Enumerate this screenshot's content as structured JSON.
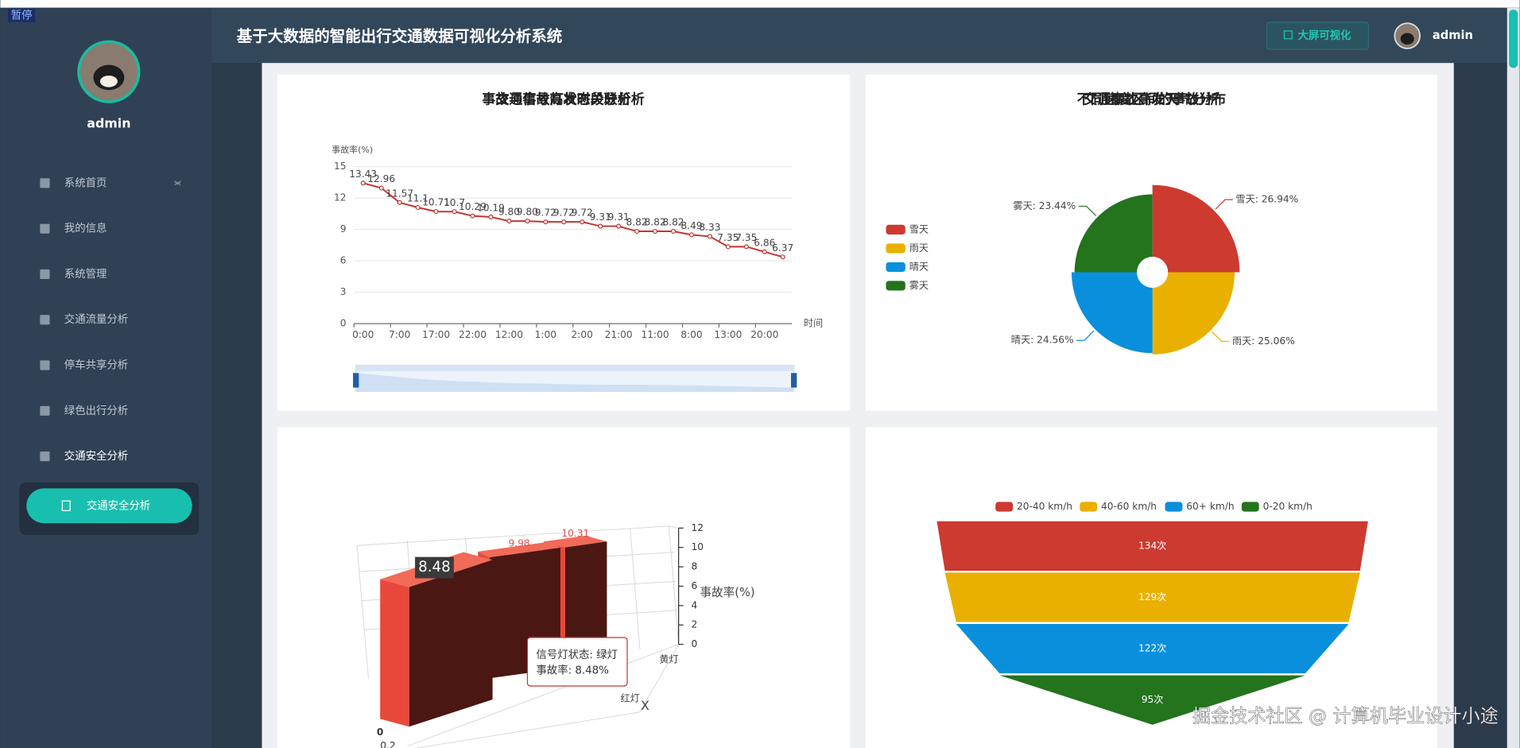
{
  "overlay": {
    "pause": "暂停",
    "watermark": "掘金技术社区 @ 计算机毕业设计小途"
  },
  "header": {
    "title": "基于大数据的智能出行交通数据可视化分析系统",
    "button": "大屏可视化",
    "user": "admin"
  },
  "sidebar": {
    "user": "admin",
    "menu": [
      "系统首页",
      "我的信息",
      "系统管理",
      "交通流量分析",
      "停车共享分析",
      "绿色出行分析",
      "交通安全分析"
    ],
    "submenu": [
      "交通安全分析"
    ]
  },
  "chart_data": [
    {
      "type": "line",
      "title": "交通事故高发时段分析",
      "y_label": "事故率(%)",
      "x_label": "时间",
      "categories": [
        "0:00",
        null,
        "7:00",
        null,
        "17:00",
        null,
        "22:00",
        null,
        "12:00",
        null,
        "1:00",
        null,
        "2:00",
        null,
        "21:00",
        null,
        "11:00",
        null,
        "8:00",
        null,
        "13:00",
        null,
        "20:00",
        null
      ],
      "values": [
        13.43,
        12.96,
        11.57,
        11.1,
        10.71,
        10.7,
        10.29,
        10.19,
        9.8,
        9.8,
        9.72,
        9.72,
        9.72,
        9.31,
        9.31,
        8.82,
        8.82,
        8.82,
        8.49,
        8.33,
        7.35,
        7.35,
        6.86,
        6.37
      ],
      "value_labels": [
        "13.43",
        "12.96",
        "11.57",
        "11.1",
        "10.71",
        "10.7",
        "10.29",
        "10.19",
        "9.80",
        "9.80",
        "9.72",
        "9.72",
        "9.72",
        "9.31",
        "9.31",
        "8.82",
        "8.82",
        "8.82",
        "8.49",
        "8.33",
        "7.35",
        "7.35",
        "6.86",
        "6.37"
      ],
      "color": "#c23531",
      "ylim": [
        0,
        15
      ],
      "yticks": [
        0,
        3,
        6,
        9,
        12,
        15
      ],
      "grid": true
    },
    {
      "type": "pie",
      "title": "交通事故高发天气分析",
      "rose": "area",
      "legend": "left",
      "categories": [
        "雪天",
        "雨天",
        "晴天",
        "雾天"
      ],
      "values": [
        26.94,
        25.06,
        24.56,
        23.44
      ],
      "value_labels": [
        "雪天: 26.94%",
        "雨天: 25.06%",
        "晴天: 24.56%",
        "雾天: 23.44%"
      ],
      "colors": [
        "#cc3a30",
        "#e9b000",
        "#0a8fdc",
        "#23741d"
      ]
    },
    {
      "type": "bar3d",
      "title": "事故与信号灯状态关联分析",
      "x_label": "X",
      "z_label": "事故率(%)",
      "categories": [
        null,
        "黄灯",
        "红灯"
      ],
      "values": [
        8.48,
        9.98,
        10.31
      ],
      "color": "#e8493a",
      "zlim": [
        0,
        12
      ],
      "zticks": [
        0,
        2,
        4,
        6,
        8,
        10,
        12
      ],
      "depth_ticks": [
        0,
        0.2
      ],
      "tooltip": [
        "信号灯状态: 绿灯",
        "事故率: 8.48%"
      ]
    },
    {
      "type": "funnel",
      "title": "不同速度区间的事故分布",
      "categories": [
        "20-40 km/h",
        "40-60 km/h",
        "60+ km/h",
        "0-20 km/h"
      ],
      "values": [
        134,
        129,
        122,
        95
      ],
      "value_labels": [
        "134次",
        "129次",
        "122次",
        "95次"
      ],
      "colors": [
        "#cc3a30",
        "#e9b000",
        "#0a8fdc",
        "#23741d"
      ]
    }
  ]
}
